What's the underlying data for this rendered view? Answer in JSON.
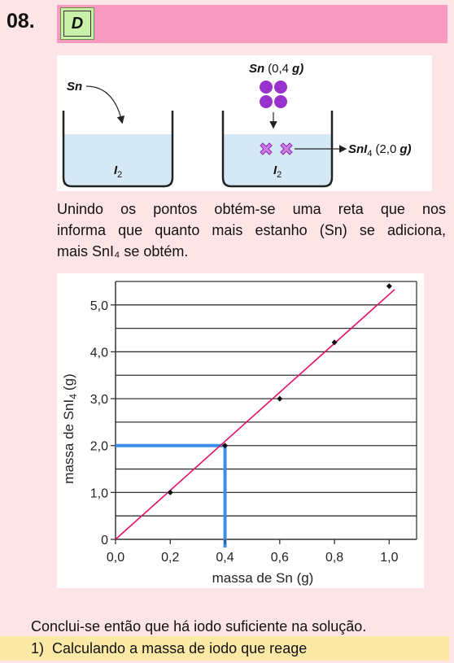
{
  "header": {
    "number": "08.",
    "answer": "D"
  },
  "diagram": {
    "left_label": "Sn",
    "left_beaker": "I",
    "left_beaker_sub": "2",
    "right_top_label": "Sn",
    "right_top_mass": "(0,4",
    "right_top_unit": "g)",
    "right_beaker": "I",
    "right_beaker_sub": "2",
    "product_a": "Sn",
    "product_b": "I",
    "product_sub": "4",
    "product_mass": "(2,0",
    "product_unit": "g)",
    "colors": {
      "liquid": "#d4e8f6",
      "atoms": "#9932cc",
      "product": "#d07ce8"
    }
  },
  "paragraph": {
    "line1": "Unindo os pontos obtém-se uma reta que nos",
    "line2": "informa que quanto mais estanho (Sn) se adiciona,",
    "line3": "mais SnI₄ se obtém."
  },
  "chart_data": {
    "type": "scatter",
    "points": [
      {
        "x": 0.2,
        "y": 1.0
      },
      {
        "x": 0.4,
        "y": 2.0
      },
      {
        "x": 0.6,
        "y": 3.0
      },
      {
        "x": 0.8,
        "y": 4.2
      },
      {
        "x": 1.0,
        "y": 5.4
      }
    ],
    "fit_line": {
      "from": [
        0.0,
        0.0
      ],
      "to": [
        1.02,
        5.33
      ],
      "color": "#e0106a"
    },
    "highlight": {
      "x": 0.4,
      "y": 2.0,
      "color": "#3a8ee6"
    },
    "xlabel": "massa de Sn (g)",
    "ylabel_main": "massa de SnI",
    "ylabel_sub": "4",
    "ylabel_unit": "(g)",
    "xticks": [
      "0,0",
      "0,2",
      "0,4",
      "0,6",
      "0,8",
      "1,0"
    ],
    "yticks": [
      "0",
      "1,0",
      "2,0",
      "3,0",
      "4,0",
      "5,0"
    ],
    "xlim": [
      0,
      1.1
    ],
    "ylim": [
      0,
      5.5
    ],
    "grid": "horizontal"
  },
  "conclusion": "Conclui-se então que há iodo suficiente na solução.",
  "step": "1)  Calculando a massa de iodo que reage"
}
